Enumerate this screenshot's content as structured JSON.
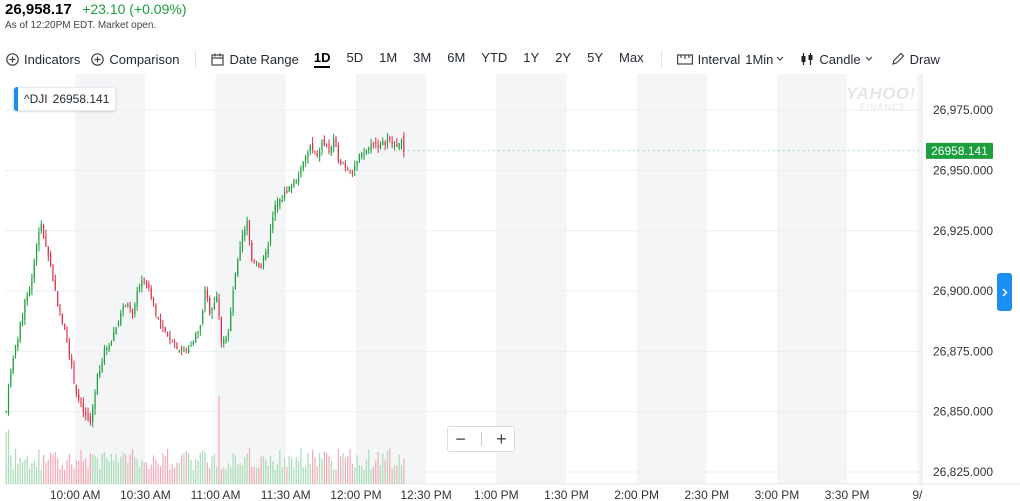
{
  "quote": {
    "price": "26,958.17",
    "change": "+23.10 (+0.09%)",
    "as_of": "As of 12:20PM EDT. Market open.",
    "change_color": "#1b9f3c"
  },
  "toolbar": {
    "indicators": "Indicators",
    "comparison": "Comparison",
    "date_range": "Date Range",
    "ranges": [
      "1D",
      "5D",
      "1M",
      "3M",
      "6M",
      "YTD",
      "1Y",
      "2Y",
      "5Y",
      "Max"
    ],
    "active_range": "1D",
    "interval": "Interval",
    "interval_value": "1Min",
    "chart_type": "Candle",
    "draw": "Draw"
  },
  "legend": {
    "symbol": "^DJI",
    "value": "26958.141"
  },
  "watermark": {
    "line1": "YAHOO!",
    "line2": "FINANCE"
  },
  "zoom": {
    "minus": "−",
    "plus": "+"
  },
  "colors": {
    "up": "#1b9f3c",
    "down": "#e0304c",
    "accent": "#1a8ff0",
    "band": "#f4f5f6",
    "price_tag": "#1b9f3c"
  },
  "chart_data": {
    "type": "candlestick",
    "symbol": "^DJI",
    "interval": "1 minute",
    "ylim": [
      26820,
      26990
    ],
    "y_ticks": [
      "26,975.000",
      "26,950.000",
      "26,925.000",
      "26,900.000",
      "26,875.000",
      "26,850.000",
      "26,825.000"
    ],
    "y_tick_values": [
      26975,
      26950,
      26925,
      26900,
      26875,
      26850,
      26825
    ],
    "x_ticks": [
      "10:00 AM",
      "10:30 AM",
      "11:00 AM",
      "11:30 AM",
      "12:00 PM",
      "12:30 PM",
      "1:00 PM",
      "1:30 PM",
      "2:00 PM",
      "2:30 PM",
      "3:00 PM",
      "3:30 PM",
      "9/"
    ],
    "x_tick_minutes": [
      600,
      630,
      660,
      690,
      720,
      750,
      780,
      810,
      840,
      870,
      900,
      930,
      960
    ],
    "x_start_minute": 570,
    "x_end_minute": 962,
    "last_price_label": "26958.141",
    "last_price": 26958.141,
    "grid": true,
    "price_path": [
      [
        570,
        26850
      ],
      [
        572,
        26868
      ],
      [
        575,
        26880
      ],
      [
        578,
        26895
      ],
      [
        581,
        26905
      ],
      [
        583,
        26920
      ],
      [
        585,
        26927
      ],
      [
        588,
        26915
      ],
      [
        590,
        26905
      ],
      [
        593,
        26890
      ],
      [
        596,
        26880
      ],
      [
        598,
        26868
      ],
      [
        600,
        26858
      ],
      [
        602,
        26852
      ],
      [
        604,
        26848
      ],
      [
        606,
        26845
      ],
      [
        607,
        26852
      ],
      [
        609,
        26865
      ],
      [
        612,
        26875
      ],
      [
        615,
        26880
      ],
      [
        618,
        26888
      ],
      [
        621,
        26895
      ],
      [
        624,
        26890
      ],
      [
        626,
        26900
      ],
      [
        629,
        26905
      ],
      [
        632,
        26898
      ],
      [
        635,
        26888
      ],
      [
        638,
        26882
      ],
      [
        641,
        26880
      ],
      [
        644,
        26876
      ],
      [
        647,
        26875
      ],
      [
        650,
        26880
      ],
      [
        653,
        26885
      ],
      [
        655,
        26900
      ],
      [
        657,
        26892
      ],
      [
        660,
        26898
      ],
      [
        662,
        26880
      ],
      [
        665,
        26882
      ],
      [
        667,
        26900
      ],
      [
        669,
        26912
      ],
      [
        671,
        26922
      ],
      [
        673,
        26928
      ],
      [
        675,
        26913
      ],
      [
        677,
        26912
      ],
      [
        679,
        26910
      ],
      [
        681,
        26915
      ],
      [
        683,
        26925
      ],
      [
        685,
        26935
      ],
      [
        687,
        26937
      ],
      [
        690,
        26942
      ],
      [
        693,
        26945
      ],
      [
        695,
        26948
      ],
      [
        698,
        26955
      ],
      [
        700,
        26960
      ],
      [
        703,
        26955
      ],
      [
        705,
        26962
      ],
      [
        708,
        26958
      ],
      [
        710,
        26962
      ],
      [
        712,
        26955
      ],
      [
        715,
        26952
      ],
      [
        718,
        26950
      ],
      [
        721,
        26955
      ],
      [
        724,
        26958
      ],
      [
        727,
        26962
      ],
      [
        730,
        26960
      ],
      [
        733,
        26963
      ],
      [
        736,
        26960
      ],
      [
        739,
        26962
      ],
      [
        740,
        26958
      ]
    ]
  }
}
